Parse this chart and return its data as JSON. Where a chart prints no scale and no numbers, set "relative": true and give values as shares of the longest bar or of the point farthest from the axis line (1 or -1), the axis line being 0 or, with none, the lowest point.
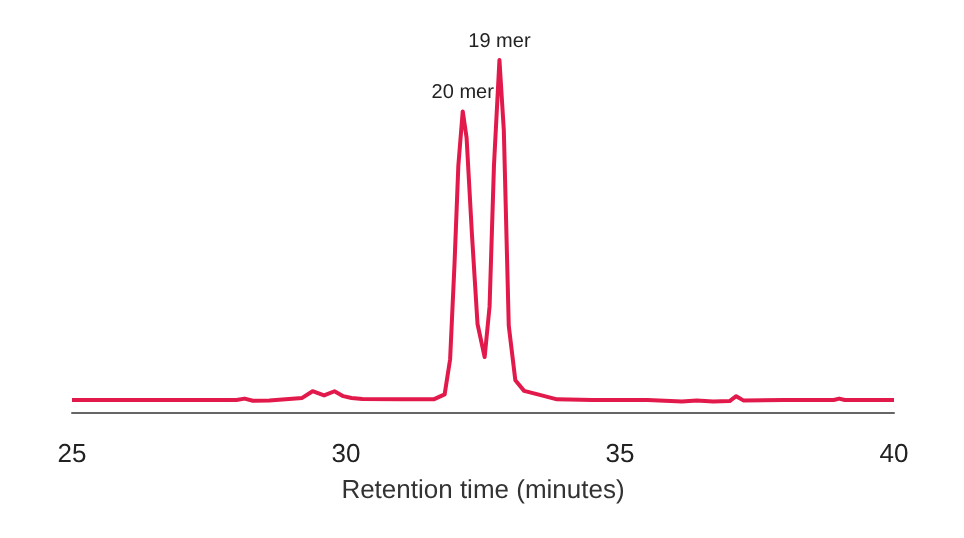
{
  "chart_data": {
    "type": "line",
    "relative": true,
    "xlabel": "Retention time (minutes)",
    "xlim": [
      25,
      40
    ],
    "xticks": [
      25,
      30,
      35,
      40
    ],
    "grid": false,
    "marker": "none",
    "line_style": "solid",
    "annotations": [
      {
        "text": "20 mer",
        "x": 32.13,
        "y": 0.854
      },
      {
        "text": "19 mer",
        "x": 32.8,
        "y": 1
      }
    ],
    "series": [
      {
        "color": "#e2194b",
        "x": [
          25,
          26,
          27,
          28,
          28.15,
          28.3,
          28.6,
          28.9,
          29.2,
          29.39,
          29.6,
          29.79,
          29.95,
          30.1,
          30.3,
          31,
          31.6,
          31.8,
          31.9,
          31.98,
          32.05,
          32.13,
          32.2,
          32.3,
          32.4,
          32.53,
          32.62,
          32.7,
          32.8,
          32.88,
          32.97,
          33.09,
          33.25,
          33.5,
          33.85,
          34.5,
          35.5,
          36.13,
          36.4,
          36.7,
          37,
          37.12,
          37.25,
          38,
          38.9,
          39,
          39.1,
          40
        ],
        "values": [
          0.034,
          0.034,
          0.034,
          0.034,
          0.038,
          0.032,
          0.033,
          0.036,
          0.04,
          0.059,
          0.047,
          0.059,
          0.045,
          0.04,
          0.037,
          0.036,
          0.036,
          0.05,
          0.15,
          0.42,
          0.7,
          0.854,
          0.78,
          0.5,
          0.25,
          0.156,
          0.3,
          0.7,
          1,
          0.8,
          0.245,
          0.09,
          0.06,
          0.05,
          0.036,
          0.034,
          0.034,
          0.03,
          0.033,
          0.03,
          0.031,
          0.045,
          0.033,
          0.034,
          0.034,
          0.038,
          0.034,
          0.034
        ]
      }
    ]
  }
}
